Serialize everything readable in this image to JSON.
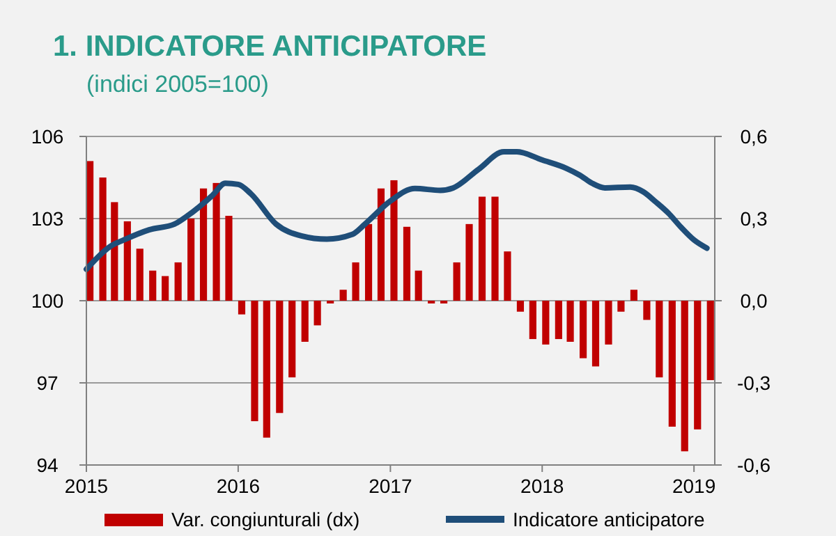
{
  "chart_data": {
    "type": "bar",
    "title": "1. INDICATORE ANTICIPATORE",
    "subtitle": "(indici 2005=100)",
    "x": [
      "2015-01",
      "2015-02",
      "2015-03",
      "2015-04",
      "2015-05",
      "2015-06",
      "2015-07",
      "2015-08",
      "2015-09",
      "2015-10",
      "2015-11",
      "2015-12",
      "2016-01",
      "2016-02",
      "2016-03",
      "2016-04",
      "2016-05",
      "2016-06",
      "2016-07",
      "2016-08",
      "2016-09",
      "2016-10",
      "2016-11",
      "2016-12",
      "2017-01",
      "2017-02",
      "2017-03",
      "2017-04",
      "2017-05",
      "2017-06",
      "2017-07",
      "2017-08",
      "2017-09",
      "2017-10",
      "2017-11",
      "2017-12",
      "2018-01",
      "2018-02",
      "2018-03",
      "2018-04",
      "2018-05",
      "2018-06",
      "2018-07",
      "2018-08",
      "2018-09",
      "2018-10",
      "2018-11",
      "2018-12",
      "2019-01",
      "2019-02"
    ],
    "series": [
      {
        "name": "Var. congiunturali (dx)",
        "axis": "y2",
        "color": "#c00000",
        "values": [
          0.51,
          0.45,
          0.36,
          0.29,
          0.19,
          0.11,
          0.09,
          0.14,
          0.3,
          0.41,
          0.43,
          0.31,
          -0.05,
          -0.44,
          -0.5,
          -0.41,
          -0.28,
          -0.15,
          -0.09,
          -0.01,
          0.04,
          0.14,
          0.28,
          0.41,
          0.44,
          0.27,
          0.11,
          -0.01,
          -0.01,
          0.14,
          0.28,
          0.38,
          0.38,
          0.18,
          -0.04,
          -0.14,
          -0.16,
          -0.14,
          -0.15,
          -0.21,
          -0.24,
          -0.16,
          -0.04,
          0.04,
          -0.07,
          -0.28,
          -0.46,
          -0.55,
          -0.47,
          -0.29
        ]
      },
      {
        "name": "Indicatore anticipatore",
        "type": "line",
        "axis": "y",
        "color": "#1f4e79",
        "x": [
          "2015-01",
          "2015-03",
          "2015-04",
          "2015-06",
          "2015-08",
          "2015-09",
          "2015-11",
          "2015-12",
          "2016-01",
          "2016-02",
          "2016-04",
          "2016-06",
          "2016-08",
          "2016-10",
          "2016-11",
          "2017-01",
          "2017-03",
          "2017-05",
          "2017-06",
          "2017-08",
          "2017-10",
          "2017-11",
          "2018-01",
          "2018-03",
          "2018-04",
          "2018-05",
          "2018-06",
          "2018-08",
          "2018-09",
          "2018-10",
          "2018-11",
          "2018-12",
          "2019-01",
          "2019-02"
        ],
        "values": [
          101.15,
          102.0,
          102.22,
          102.59,
          102.8,
          103.1,
          103.86,
          104.29,
          104.25,
          103.9,
          102.8,
          102.37,
          102.25,
          102.42,
          102.8,
          103.64,
          104.1,
          104.03,
          104.12,
          104.8,
          105.44,
          105.44,
          105.14,
          104.83,
          104.59,
          104.29,
          104.12,
          104.15,
          103.98,
          103.61,
          103.19,
          102.68,
          102.22,
          101.92
        ]
      }
    ],
    "xlim": [
      "2015-01",
      "2019-02-20"
    ],
    "xticks": [
      "2015",
      "2016",
      "2017",
      "2018",
      "2019"
    ],
    "ylim": [
      94,
      106
    ],
    "yticks": [
      94,
      97,
      100,
      103,
      106
    ],
    "y2lim": [
      -0.6,
      0.6
    ],
    "y2ticks": [
      {
        "value": -0.6,
        "label": "-0,6"
      },
      {
        "value": -0.3,
        "label": "-0,3"
      },
      {
        "value": 0,
        "label": "0,0"
      },
      {
        "value": 0.3,
        "label": "0,3"
      },
      {
        "value": 0.6,
        "label": "0,6"
      }
    ],
    "grid": "y",
    "legend": "bottom"
  }
}
